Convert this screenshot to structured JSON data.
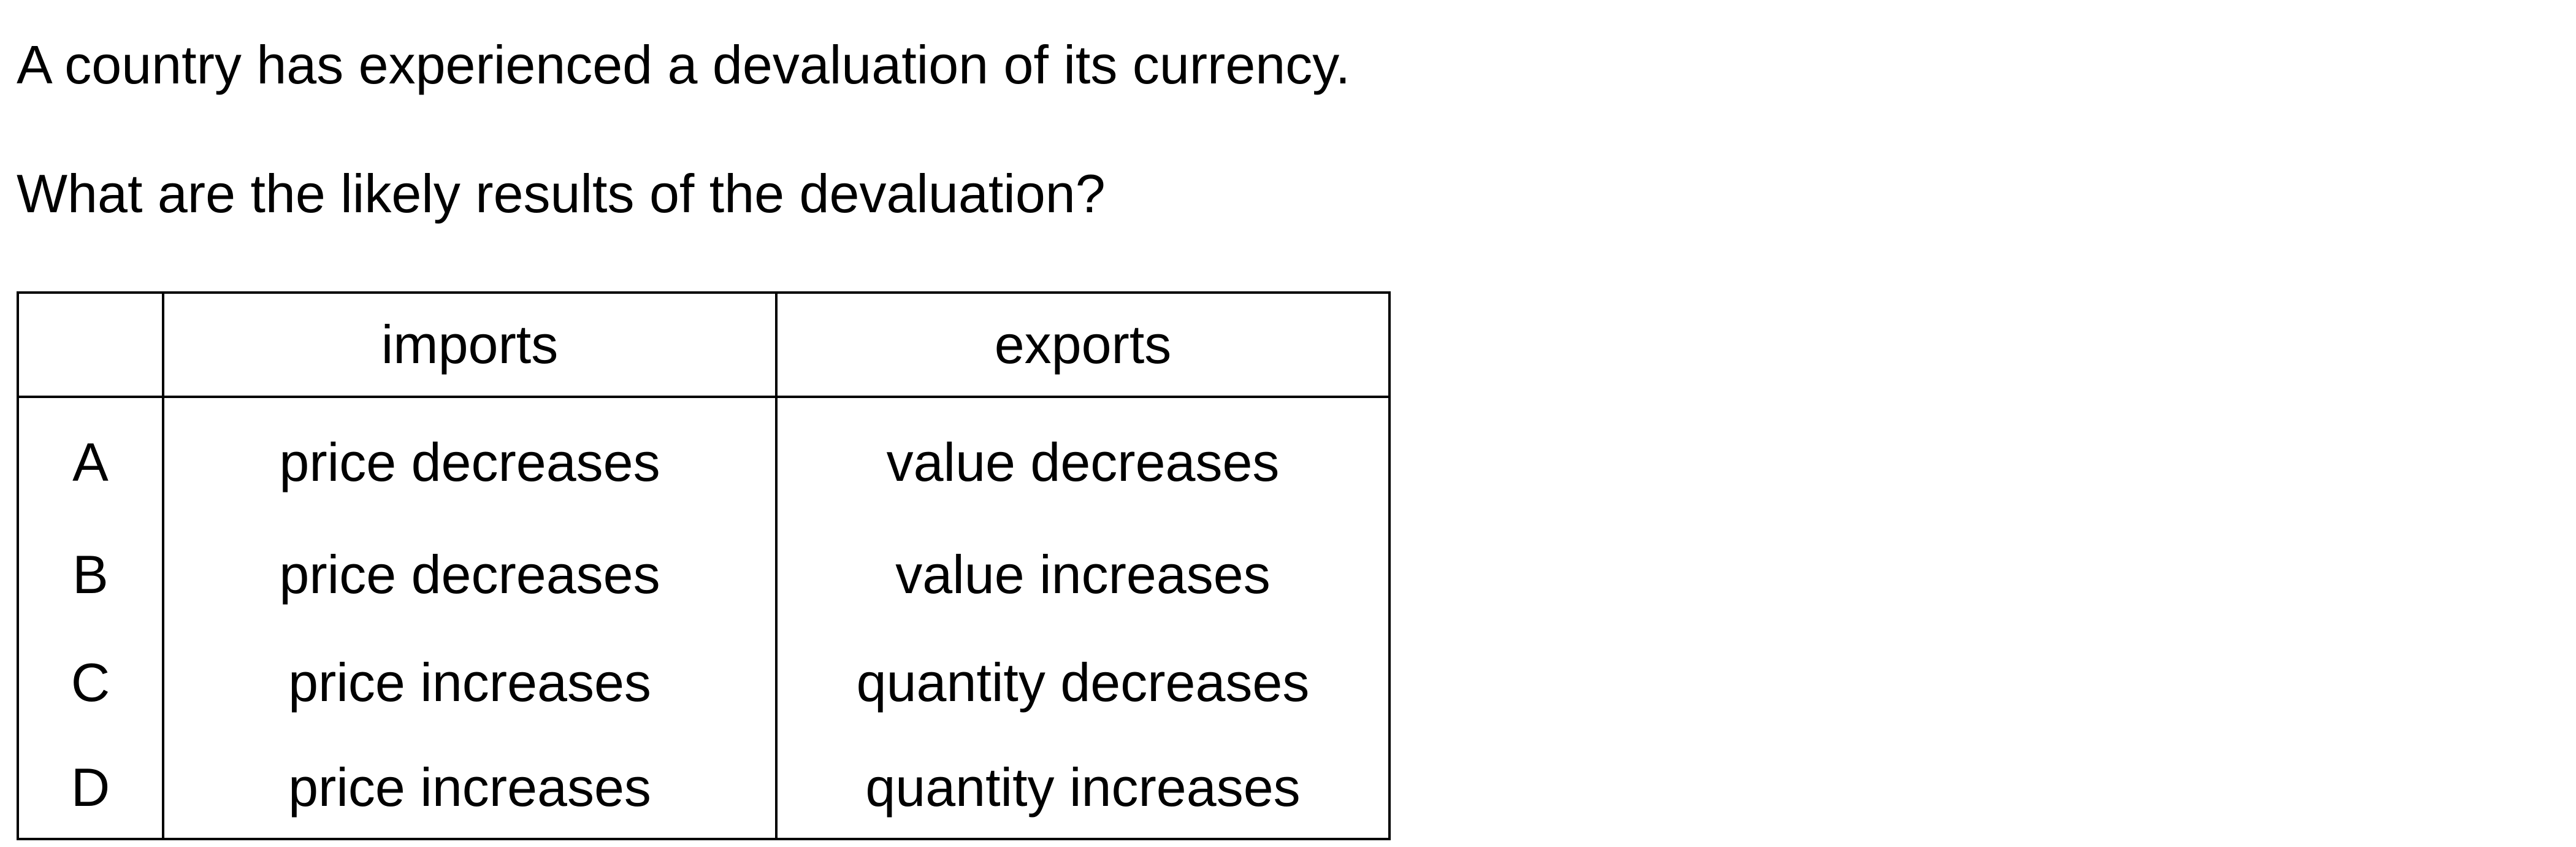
{
  "question": {
    "stem": "A country has experienced a devaluation of its currency.",
    "prompt": "What are the likely results of the devaluation?"
  },
  "table": {
    "headers": [
      "",
      "imports",
      "exports"
    ],
    "rows": [
      {
        "letter": "A",
        "imports": "price decreases",
        "exports": "value decreases"
      },
      {
        "letter": "B",
        "imports": "price decreases",
        "exports": "value increases"
      },
      {
        "letter": "C",
        "imports": "price increases",
        "exports": "quantity decreases"
      },
      {
        "letter": "D",
        "imports": "price increases",
        "exports": "quantity increases"
      }
    ]
  }
}
